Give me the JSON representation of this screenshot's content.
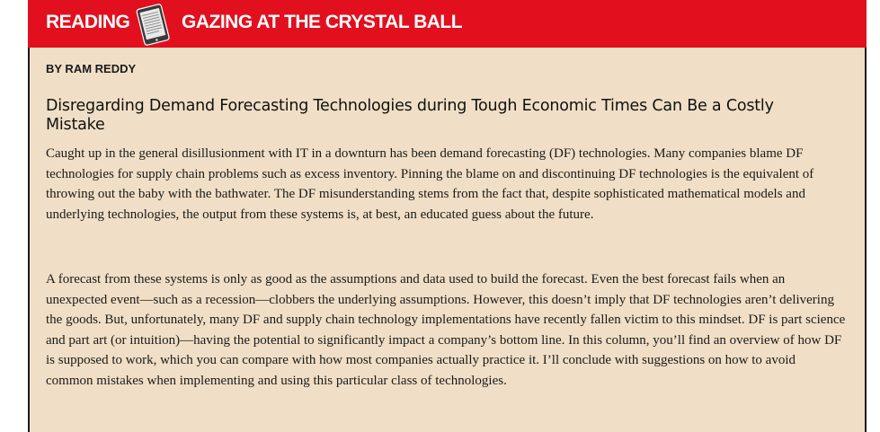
{
  "header": {
    "section_label": "READING",
    "feature_title": "GAZING AT THE CRYSTAL BALL",
    "section_icon": "tablet-icon",
    "background_color": "#e2101f"
  },
  "article": {
    "byline": "BY RAM REDDY",
    "headline": "Disregarding Demand Forecasting Technologies during Tough Economic Times Can Be a Costly Mistake",
    "paragraphs": [
      "Caught up in the general disillusionment with IT in a downturn has been demand forecasting (DF) technologies. Many companies blame DF technologies for supply chain problems such as excess inventory. Pinning the blame on and discontinuing DF technologies is the equivalent of throwing out the baby with the bathwater. The DF misunderstanding stems from the fact that, despite sophisticated mathematical models and underlying technologies, the output from these systems is, at best, an educated guess about the future.",
      "A forecast from these systems is only as good as the assumptions and data used to build the forecast. Even the best forecast fails when an unexpected event—such as a recession—clobbers the underlying assumptions. However, this doesn’t imply that DF technologies aren’t delivering the goods. But, unfortunately, many DF and supply chain technology implementations have recently fallen victim to this mindset. DF is part science and part art (or intuition)—having the potential to significantly impact a company’s bottom line. In this column, you’ll find an overview of how DF is supposed to work, which you can compare with how most companies actually practice it. I’ll conclude with suggestions on how to avoid common mistakes when implementing and using this particular class of technologies."
    ],
    "background_color": "#f0dfc6"
  }
}
